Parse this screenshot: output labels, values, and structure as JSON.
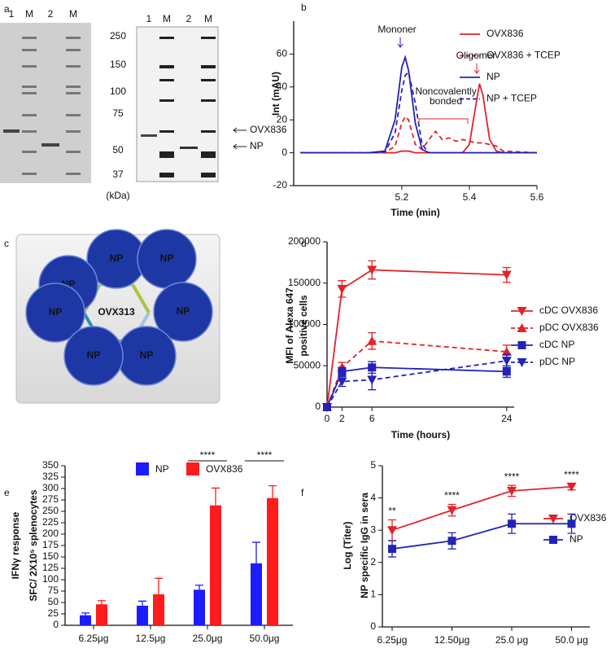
{
  "panel_labels": [
    "a",
    "b",
    "c",
    "d",
    "e",
    "f"
  ],
  "gel": {
    "lanes_left": [
      "1",
      "M",
      "2",
      "M"
    ],
    "lanes_right": [
      "1",
      "M",
      "2",
      "M"
    ],
    "markers": [
      "250",
      "150",
      "100",
      "75",
      "50",
      "37"
    ],
    "unit": "(kDa)",
    "arrow_labels": [
      "OVX836",
      "NP"
    ]
  },
  "diagram": {
    "center": "OVX313",
    "nodes": [
      "NP",
      "NP",
      "NP",
      "NP",
      "NP",
      "NP",
      "NP"
    ]
  },
  "chart_data": [
    {
      "type": "line",
      "y_label": "Int (mAU)",
      "x_label": "Time (min)",
      "x": [
        4.9,
        5.0,
        5.1,
        5.15,
        5.18,
        5.2,
        5.21,
        5.22,
        5.24,
        5.26,
        5.28,
        5.3,
        5.32,
        5.34,
        5.36,
        5.38,
        5.4,
        5.42,
        5.43,
        5.44,
        5.46,
        5.48,
        5.5,
        5.6
      ],
      "xlim": [
        4.88,
        5.6
      ],
      "xticks": [
        5.2,
        5.4,
        5.6
      ],
      "ylim": [
        -20,
        80
      ],
      "yticks": [
        -20,
        0,
        20,
        40,
        60
      ],
      "series": [
        {
          "name": "OVX836",
          "color": "#e3232a",
          "line_style": "solid",
          "values": [
            0,
            0,
            0,
            0,
            0,
            1,
            1,
            1,
            0,
            0,
            0,
            0,
            0,
            0,
            0,
            0,
            5,
            30,
            42,
            35,
            8,
            1,
            0,
            0
          ]
        },
        {
          "name": "OVX836 + TCEP",
          "color": "#e3232a",
          "line_style": "dashed",
          "values": [
            0,
            0,
            0,
            0,
            4,
            18,
            22,
            20,
            5,
            2,
            8,
            13,
            8,
            9,
            7,
            8,
            7,
            6,
            6,
            6,
            5,
            4,
            1,
            0
          ]
        },
        {
          "name": "NP",
          "color": "#2323b8",
          "line_style": "solid",
          "values": [
            0,
            0,
            0,
            1,
            20,
            52,
            58,
            50,
            18,
            2,
            0,
            0,
            0,
            0,
            0,
            0,
            0,
            0,
            0,
            0,
            0,
            0,
            0,
            0
          ]
        },
        {
          "name": "NP + TCEP",
          "color": "#2323b8",
          "line_style": "dashed",
          "values": [
            0,
            0,
            0,
            0.5,
            12,
            38,
            47,
            49,
            30,
            5,
            0,
            0,
            0,
            0,
            0,
            0,
            0,
            0,
            0,
            0,
            0,
            0,
            0,
            0
          ]
        }
      ],
      "annotations": [
        "Mononer",
        "Oligomer",
        "Noncovalently",
        "bonded"
      ]
    },
    {
      "type": "line",
      "y_label_lines": [
        "MFI of Alexa 647",
        "positive cells"
      ],
      "x_label": "Time (hours)",
      "x": [
        0,
        2,
        6,
        24
      ],
      "xlim": [
        0,
        25
      ],
      "xticks": [
        0,
        2,
        6,
        24
      ],
      "ylim": [
        0,
        200000
      ],
      "yticks": [
        0,
        50000,
        100000,
        150000,
        200000
      ],
      "series": [
        {
          "name": "cDC OVX836",
          "color": "#e3232a",
          "line_style": "solid",
          "marker": "triangle-down",
          "values": [
            0,
            143000,
            166000,
            160000
          ],
          "errors": [
            0,
            10000,
            11000,
            9000
          ]
        },
        {
          "name": "pDC OVX836",
          "color": "#e3232a",
          "line_style": "dashed",
          "marker": "triangle-up",
          "values": [
            0,
            48000,
            80000,
            67000
          ],
          "errors": [
            0,
            6000,
            10000,
            8000
          ]
        },
        {
          "name": "cDC NP",
          "color": "#2323b8",
          "line_style": "solid",
          "marker": "square",
          "values": [
            0,
            43000,
            48000,
            43000
          ],
          "errors": [
            0,
            5000,
            7000,
            7000
          ]
        },
        {
          "name": "pDC NP",
          "color": "#2323b8",
          "line_style": "dashed",
          "marker": "triangle-down",
          "values": [
            0,
            31000,
            33000,
            56000
          ],
          "errors": [
            0,
            6000,
            12000,
            8000
          ]
        }
      ]
    },
    {
      "type": "bar",
      "y_label_lines": [
        "IFNγ response",
        "SFC/ 2X10⁵ splenocytes"
      ],
      "categories": [
        "6.25μg",
        "12.5μg",
        "25.0μg",
        "50.0μg"
      ],
      "ylim": [
        0,
        350
      ],
      "yticks": [
        0,
        25,
        50,
        75,
        100,
        125,
        150,
        175,
        200,
        225,
        250,
        275,
        300,
        325,
        350
      ],
      "series": [
        {
          "name": "NP",
          "color": "#1c1cff",
          "values": [
            22,
            43,
            78,
            136
          ],
          "errors": [
            5,
            10,
            10,
            46
          ]
        },
        {
          "name": "OVX836",
          "color": "#ff1c1c",
          "values": [
            46,
            68,
            263,
            279
          ],
          "errors": [
            8,
            35,
            38,
            27
          ]
        }
      ],
      "significance": [
        null,
        null,
        "****",
        "****"
      ]
    },
    {
      "type": "line",
      "y_label_lines": [
        "Log (Titer)",
        "NP specific IgG in sera"
      ],
      "categories": [
        "6.25μg",
        "12.50μg",
        "25.0 μg",
        "50.0 μg"
      ],
      "ylim": [
        0,
        5
      ],
      "yticks": [
        0,
        1,
        2,
        3,
        4,
        5
      ],
      "series": [
        {
          "name": "OVX836",
          "color": "#e3232a",
          "line_style": "solid",
          "marker": "triangle-down",
          "values": [
            3.0,
            3.62,
            4.22,
            4.35
          ],
          "errors": [
            0.32,
            0.18,
            0.17,
            0.1
          ]
        },
        {
          "name": "NP",
          "color": "#2323b8",
          "line_style": "solid",
          "marker": "square",
          "values": [
            2.42,
            2.67,
            3.2,
            3.2
          ],
          "errors": [
            0.25,
            0.25,
            0.3,
            0.3
          ]
        }
      ],
      "significance": [
        "**",
        "****",
        "****",
        "****"
      ]
    }
  ]
}
